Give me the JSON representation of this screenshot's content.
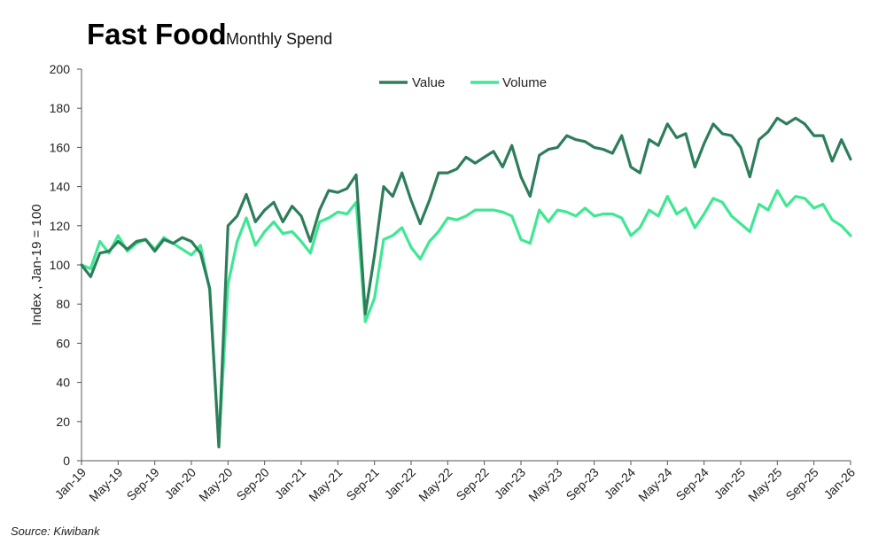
{
  "chart_data": {
    "type": "line",
    "title": "Fast Food",
    "subtitle": "Monthly Spend",
    "ylabel": "Index , Jan-19 = 100",
    "xlabel": "",
    "ylim": [
      0,
      200
    ],
    "yticks": [
      0,
      20,
      40,
      60,
      80,
      100,
      120,
      140,
      160,
      180,
      200
    ],
    "xtick_labels": [
      "Jan-19",
      "May-19",
      "Sep-19",
      "Jan-20",
      "May-20",
      "Sep-20",
      "Jan-21",
      "May-21",
      "Sep-21",
      "Jan-22",
      "May-22",
      "Sep-22",
      "Jan-23",
      "May-23",
      "Sep-23",
      "Jan-24",
      "May-24",
      "Sep-24",
      "Jan-25",
      "May-25",
      "Sep-25",
      "Jan-26"
    ],
    "xtick_step_months": 4,
    "num_months": 85,
    "legend_position": "top-center",
    "series": [
      {
        "name": "Value",
        "color": "#2e7d5b",
        "values": [
          100,
          94,
          106,
          107,
          112,
          108,
          112,
          113,
          107,
          113,
          111,
          114,
          112,
          106,
          88,
          7,
          120,
          125,
          136,
          122,
          128,
          132,
          122,
          130,
          125,
          112,
          128,
          138,
          137,
          139,
          146,
          75,
          105,
          140,
          135,
          147,
          133,
          121,
          133,
          147,
          147,
          149,
          155,
          152,
          155,
          158,
          150,
          161,
          145,
          135,
          156,
          159,
          160,
          166,
          164,
          163,
          160,
          159,
          157,
          166,
          150,
          147,
          164,
          161,
          172,
          165,
          167,
          150,
          162,
          172,
          167,
          166,
          160,
          145,
          164,
          168,
          175,
          172,
          175,
          172,
          166,
          166,
          153,
          164,
          154
        ]
      },
      {
        "name": "Volume",
        "color": "#3ee892",
        "values": [
          100,
          98,
          112,
          106,
          115,
          107,
          111,
          113,
          108,
          114,
          111,
          108,
          105,
          110,
          87,
          8,
          90,
          112,
          124,
          110,
          117,
          122,
          116,
          117,
          112,
          106,
          122,
          124,
          127,
          126,
          132,
          71,
          83,
          113,
          115,
          119,
          109,
          103,
          112,
          117,
          124,
          123,
          125,
          128,
          128,
          128,
          127,
          125,
          113,
          111,
          128,
          122,
          128,
          127,
          125,
          129,
          125,
          126,
          126,
          124,
          115,
          119,
          128,
          125,
          135,
          126,
          129,
          119,
          126,
          134,
          132,
          125,
          121,
          117,
          131,
          128,
          138,
          130,
          135,
          134,
          129,
          131,
          123,
          120,
          115
        ]
      }
    ]
  },
  "source": "Source: Kiwibank"
}
